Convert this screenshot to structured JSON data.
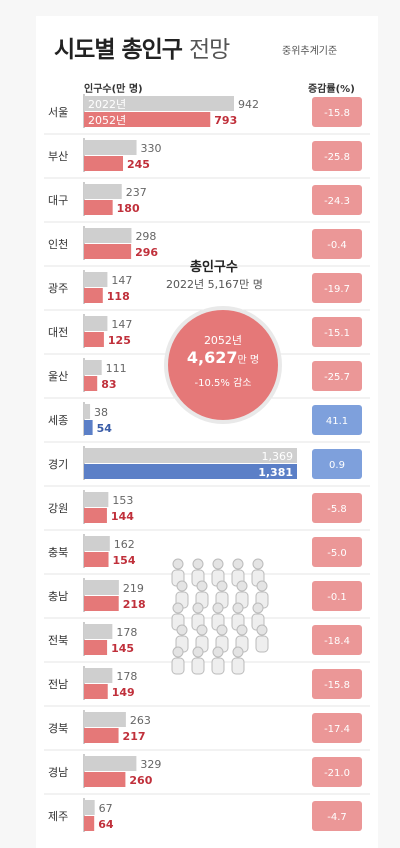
{
  "header": {
    "title": "시도별 총인구",
    "title_suffix": "전망",
    "source": "중위추계기준",
    "left_col": "인구수(만 명)",
    "right_col": "증감률(%)"
  },
  "summary": {
    "title": "총인구수",
    "year_2022": "2022년",
    "value_2022": "5,167",
    "unit": "만 명",
    "year_2052": "2052년",
    "value_2052": "4,627",
    "rate": "-10.5%",
    "rate_suffix": "감소"
  },
  "colors": {
    "bar_2022": "#cfcfcf",
    "bar_2052_decrease": "#e57878",
    "bar_2052_increase": "#5b7fc7",
    "rate_decrease": "#eb9797",
    "rate_increase": "#7ea0dc"
  },
  "chart_data": {
    "type": "bar",
    "categories": [
      "서울",
      "부산",
      "대구",
      "인천",
      "광주",
      "대전",
      "울산",
      "세종",
      "경기",
      "강원",
      "충북",
      "충남",
      "전북",
      "전남",
      "경북",
      "경남",
      "제주"
    ],
    "series": [
      {
        "name": "2022년",
        "values": [
          942,
          330,
          237,
          298,
          147,
          147,
          111,
          38,
          1369,
          153,
          162,
          219,
          178,
          178,
          263,
          329,
          67
        ]
      },
      {
        "name": "2052년",
        "values": [
          793,
          245,
          180,
          296,
          118,
          125,
          83,
          54,
          1381,
          144,
          154,
          218,
          145,
          149,
          217,
          260,
          64
        ]
      }
    ],
    "rate_labels": [
      "-15.8",
      "-25.8",
      "-24.3",
      "-0.4",
      "-19.7",
      "-15.1",
      "-25.7",
      "41.1",
      "0.9",
      "-5.8",
      "-5.0",
      "-0.1",
      "-18.4",
      "-15.8",
      "-17.4",
      "-21.0",
      "-4.7"
    ],
    "value_labels_2022": [
      "942",
      "330",
      "237",
      "298",
      "147",
      "147",
      "111",
      "38",
      "1,369",
      "153",
      "162",
      "219",
      "178",
      "178",
      "263",
      "329",
      "67"
    ],
    "value_labels_2052": [
      "793",
      "245",
      "180",
      "296",
      "118",
      "125",
      "83",
      "54",
      "1,381",
      "144",
      "154",
      "218",
      "145",
      "149",
      "217",
      "260",
      "64"
    ]
  }
}
